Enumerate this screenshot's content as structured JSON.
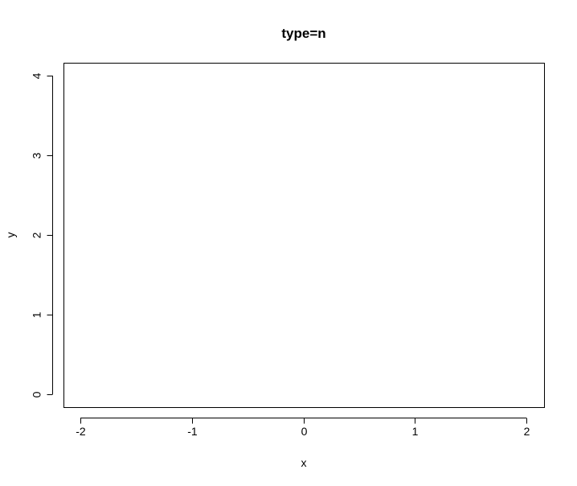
{
  "chart_data": {
    "type": "scatter",
    "title": "type=n",
    "xlabel": "x",
    "ylabel": "y",
    "xlim": [
      -2,
      2
    ],
    "ylim": [
      0,
      4
    ],
    "x_ticks": [
      "-2",
      "-1",
      "0",
      "1",
      "2"
    ],
    "y_ticks": [
      "0",
      "1",
      "2",
      "3",
      "4"
    ],
    "series": [],
    "grid": false,
    "legend": "none",
    "colors": {
      "axis": "#000000",
      "background": "#ffffff"
    }
  }
}
